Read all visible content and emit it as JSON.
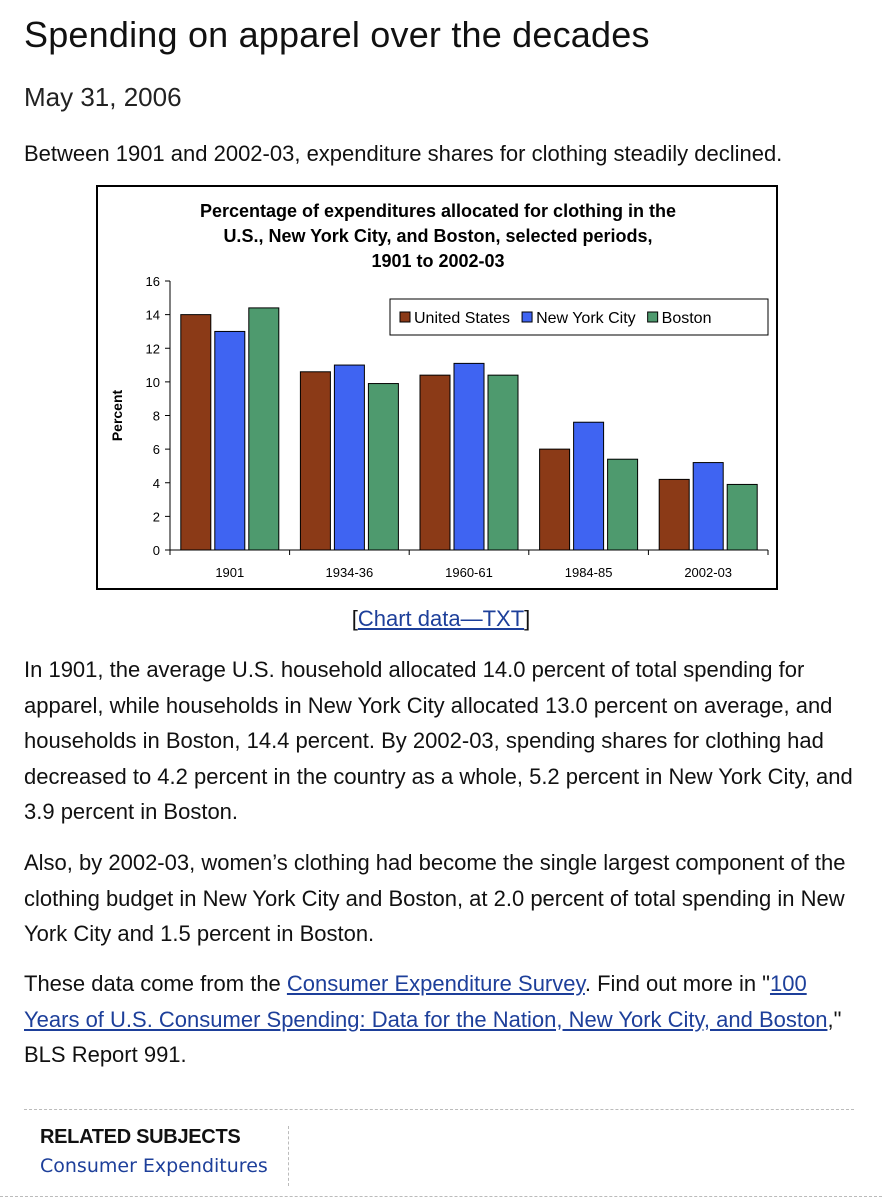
{
  "article": {
    "title": "Spending on apparel over the decades",
    "date": "May 31, 2006",
    "intro": "Between 1901 and 2002-03, expenditure shares for clothing steadily declined."
  },
  "chart_link": {
    "open": "[",
    "label": "Chart data—TXT",
    "close": "]"
  },
  "paragraphs": {
    "p1": "In 1901, the average U.S. household allocated 14.0 percent of total spending for apparel, while households in New York City allocated 13.0 percent on average, and households in Boston, 14.4 percent. By 2002-03, spending shares for clothing had decreased to 4.2 percent in the country as a whole, 5.2 percent in New York City, and 3.9 percent in Boston.",
    "p2": "Also, by 2002-03, women’s clothing had become the single largest component of the clothing budget in New York City and Boston, at 2.0 percent of total spending in New York City and 1.5 percent in Boston.",
    "p3": {
      "before": "These data come from the ",
      "link1": "Consumer Expenditure Survey",
      "middle": ". Find out more in \"",
      "link2": "100 Years of U.S. Consumer Spending: Data for the Nation, New York City, and Boston",
      "after": ",\" BLS Report 991."
    }
  },
  "related": {
    "heading": "RELATED SUBJECTS",
    "link": "Consumer Expenditures"
  },
  "chart_data": {
    "type": "bar",
    "title_lines": [
      "Percentage of expenditures allocated for clothing in the",
      "U.S., New York City, and Boston, selected periods,",
      "1901 to 2002-03"
    ],
    "ylabel": "Percent",
    "xlabel": "",
    "ylim": [
      0,
      16
    ],
    "yticks": [
      0,
      2,
      4,
      6,
      8,
      10,
      12,
      14,
      16
    ],
    "grid": false,
    "legend_position": "top-right",
    "categories": [
      "1901",
      "1934-36",
      "1960-61",
      "1984-85",
      "2002-03"
    ],
    "series": [
      {
        "name": "United States",
        "color": "#8b3a17",
        "values": [
          14.0,
          10.6,
          10.4,
          6.0,
          4.2
        ]
      },
      {
        "name": "New York City",
        "color": "#3f64f2",
        "values": [
          13.0,
          11.0,
          11.1,
          7.6,
          5.2
        ]
      },
      {
        "name": "Boston",
        "color": "#4e9a6e",
        "values": [
          14.4,
          9.9,
          10.4,
          5.4,
          3.9
        ]
      }
    ]
  }
}
